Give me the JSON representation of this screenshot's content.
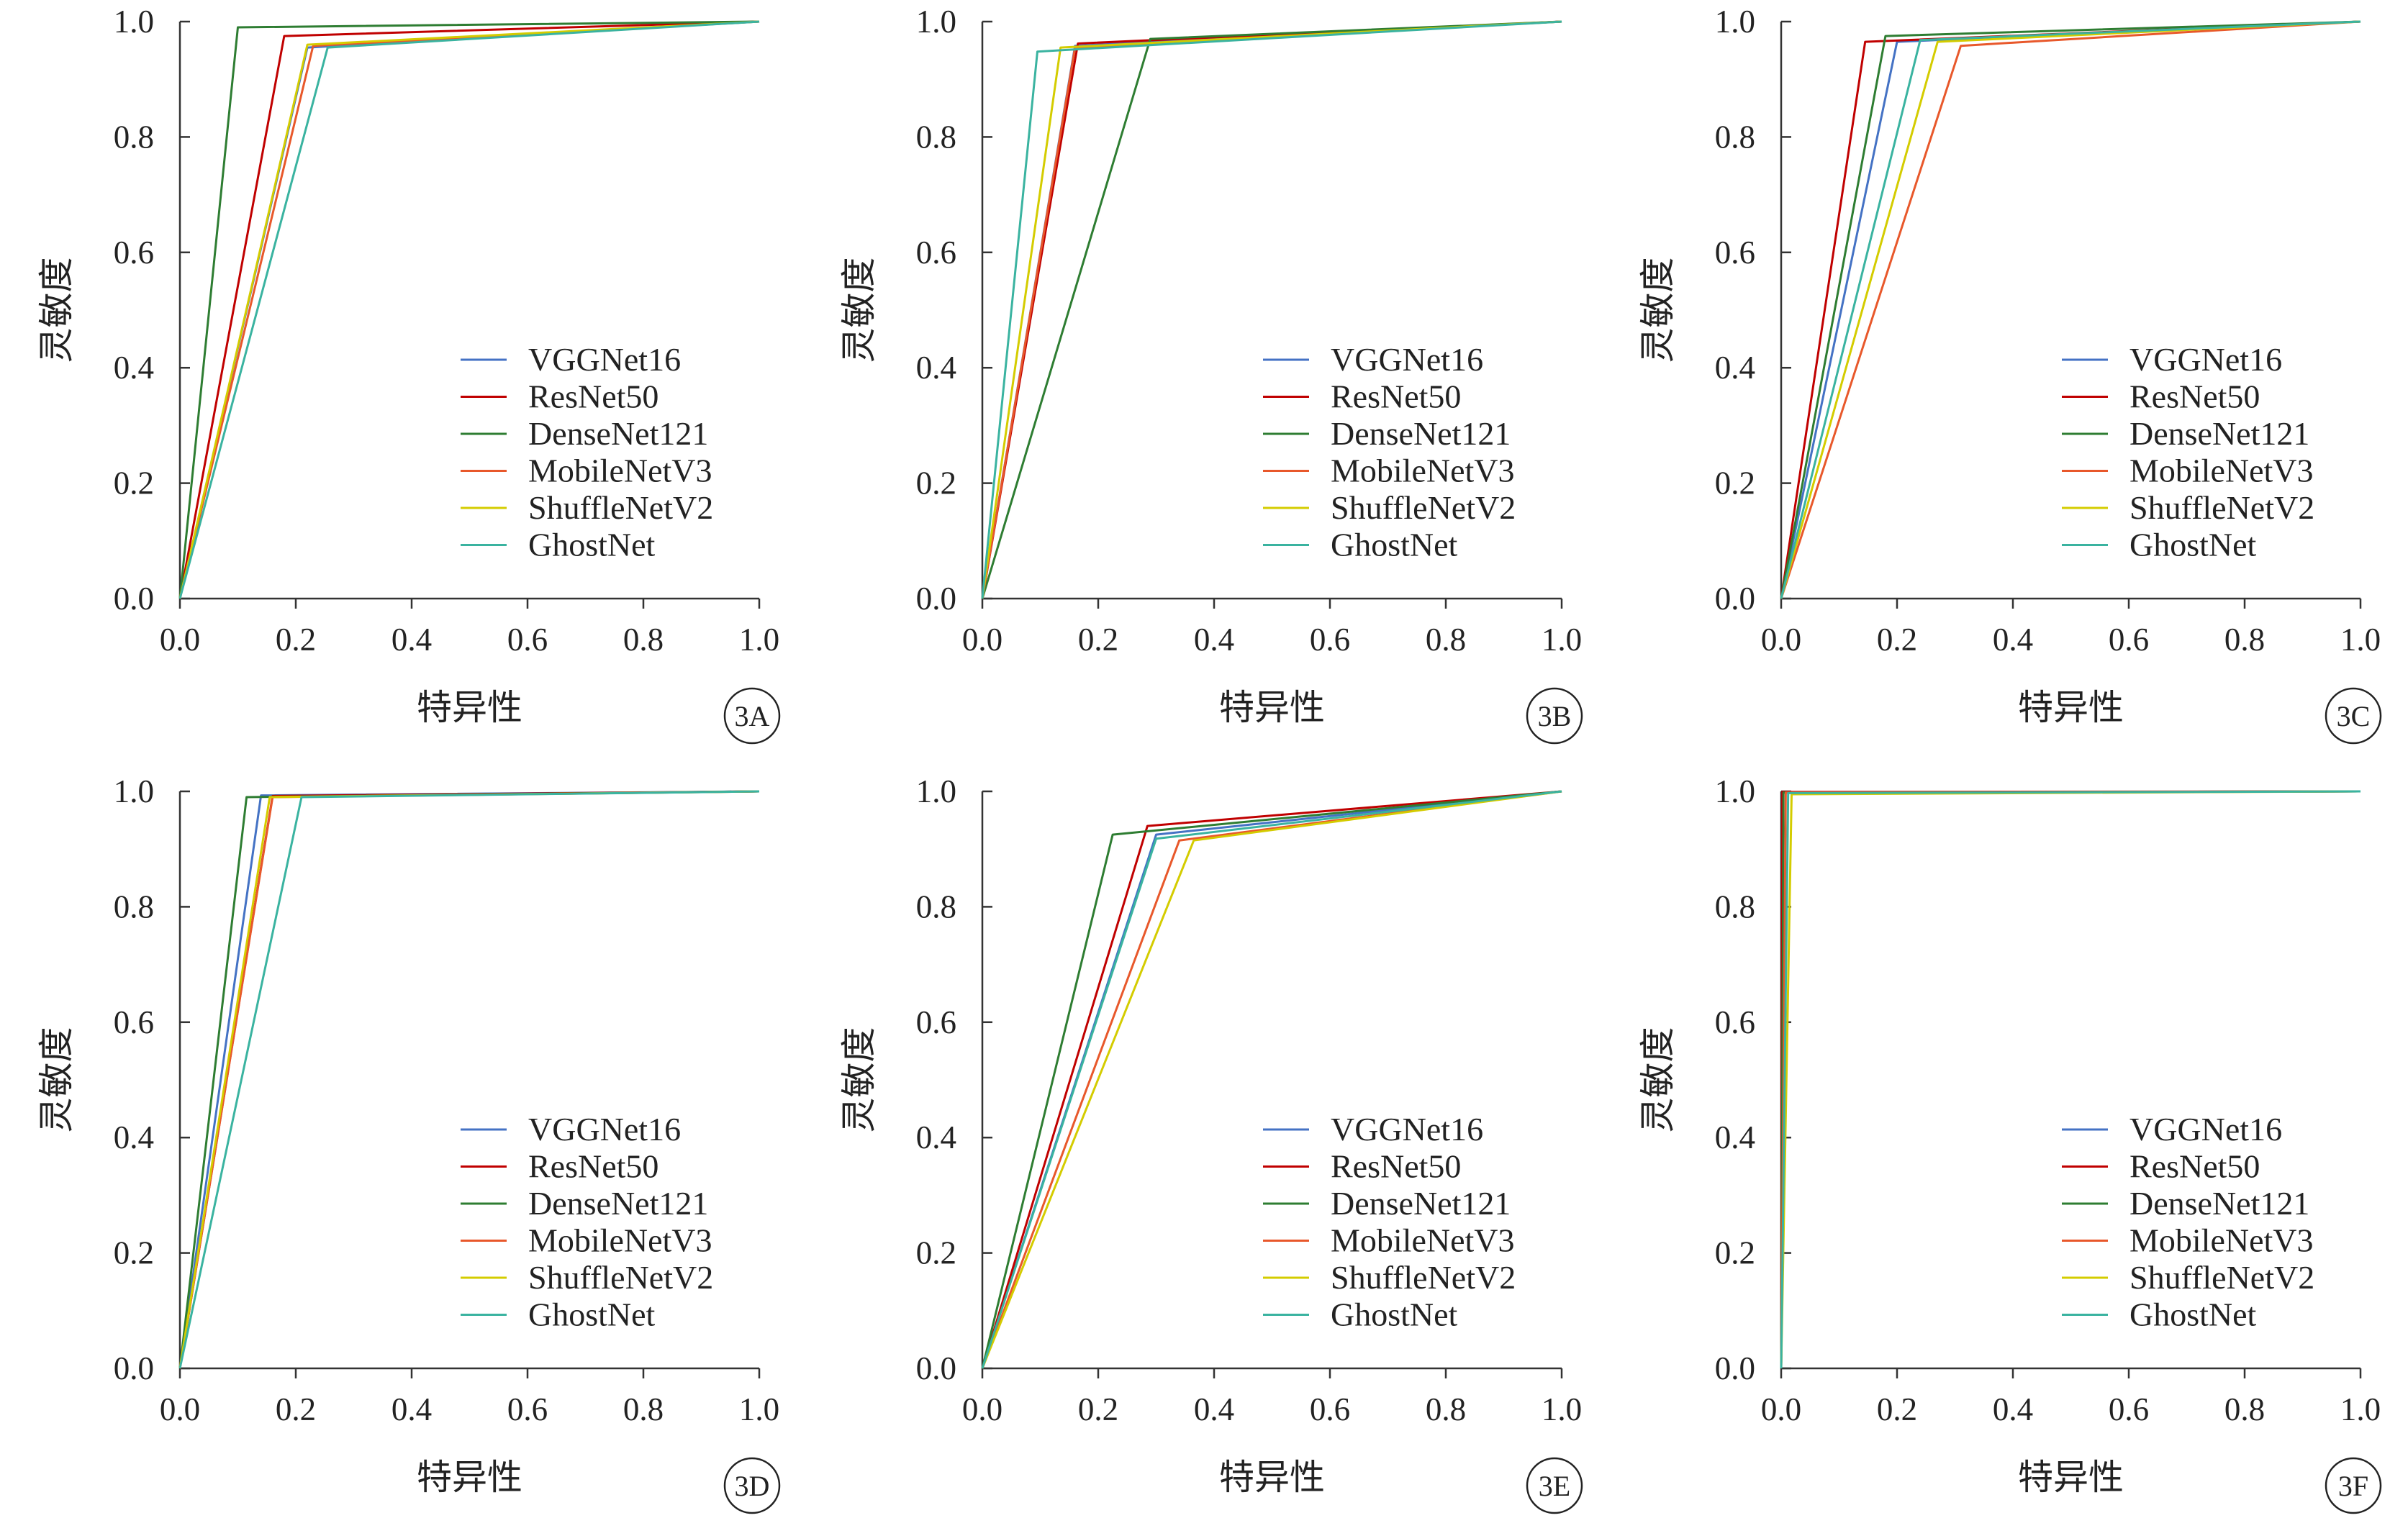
{
  "figure": {
    "xlabel": "特异性",
    "ylabel": "灵敏度"
  },
  "series_colors": {
    "VGGNet16": "#4472c4",
    "ResNet50": "#c00000",
    "DenseNet121": "#2e7d32",
    "MobileNetV3": "#e8582b",
    "ShuffleNetV2": "#d4cc00",
    "GhostNet": "#3ab3a0"
  },
  "chart_data": [
    {
      "panel": "3A",
      "type": "line",
      "xlabel": "特异性",
      "ylabel": "灵敏度",
      "xlim": [
        0,
        1
      ],
      "ylim": [
        0,
        1
      ],
      "xticks": [
        "0.0",
        "0.2",
        "0.4",
        "0.6",
        "0.8",
        "1.0"
      ],
      "yticks": [
        "0.0",
        "0.2",
        "0.4",
        "0.6",
        "0.8",
        "1.0"
      ],
      "legend": "lower-right",
      "series": [
        {
          "name": "VGGNet16",
          "x": [
            0,
            0.22,
            1
          ],
          "y": [
            0,
            0.955,
            1
          ]
        },
        {
          "name": "ResNet50",
          "x": [
            0,
            0.18,
            1
          ],
          "y": [
            0,
            0.975,
            1
          ]
        },
        {
          "name": "DenseNet121",
          "x": [
            0,
            0.1,
            1
          ],
          "y": [
            0,
            0.99,
            1
          ]
        },
        {
          "name": "MobileNetV3",
          "x": [
            0,
            0.23,
            1
          ],
          "y": [
            0,
            0.958,
            1
          ]
        },
        {
          "name": "ShuffleNetV2",
          "x": [
            0,
            0.22,
            1
          ],
          "y": [
            0,
            0.96,
            1
          ]
        },
        {
          "name": "GhostNet",
          "x": [
            0,
            0.255,
            1
          ],
          "y": [
            0,
            0.955,
            1
          ]
        }
      ]
    },
    {
      "panel": "3B",
      "type": "line",
      "xlabel": "特异性",
      "ylabel": "灵敏度",
      "xlim": [
        0,
        1
      ],
      "ylim": [
        0,
        1
      ],
      "xticks": [
        "0.0",
        "0.2",
        "0.4",
        "0.6",
        "0.8",
        "1.0"
      ],
      "yticks": [
        "0.0",
        "0.2",
        "0.4",
        "0.6",
        "0.8",
        "1.0"
      ],
      "legend": "lower-right",
      "series": [
        {
          "name": "VGGNet16",
          "x": [
            0,
            0.16,
            1
          ],
          "y": [
            0,
            0.958,
            1
          ]
        },
        {
          "name": "ResNet50",
          "x": [
            0,
            0.165,
            1
          ],
          "y": [
            0,
            0.962,
            1
          ]
        },
        {
          "name": "DenseNet121",
          "x": [
            0,
            0.29,
            1
          ],
          "y": [
            0,
            0.97,
            1
          ]
        },
        {
          "name": "MobileNetV3",
          "x": [
            0,
            0.16,
            1
          ],
          "y": [
            0,
            0.955,
            1
          ]
        },
        {
          "name": "ShuffleNetV2",
          "x": [
            0,
            0.135,
            1
          ],
          "y": [
            0,
            0.955,
            1
          ]
        },
        {
          "name": "GhostNet",
          "x": [
            0,
            0.095,
            1
          ],
          "y": [
            0,
            0.948,
            1
          ]
        }
      ]
    },
    {
      "panel": "3C",
      "type": "line",
      "xlabel": "特异性",
      "ylabel": "灵敏度",
      "xlim": [
        0,
        1
      ],
      "ylim": [
        0,
        1
      ],
      "xticks": [
        "0.0",
        "0.2",
        "0.4",
        "0.6",
        "0.8",
        "1.0"
      ],
      "yticks": [
        "0.0",
        "0.2",
        "0.4",
        "0.6",
        "0.8",
        "1.0"
      ],
      "legend": "lower-right",
      "series": [
        {
          "name": "VGGNet16",
          "x": [
            0,
            0.2,
            1
          ],
          "y": [
            0,
            0.965,
            1
          ]
        },
        {
          "name": "ResNet50",
          "x": [
            0,
            0.145,
            1
          ],
          "y": [
            0,
            0.965,
            1
          ]
        },
        {
          "name": "DenseNet121",
          "x": [
            0,
            0.18,
            1
          ],
          "y": [
            0,
            0.975,
            1
          ]
        },
        {
          "name": "MobileNetV3",
          "x": [
            0,
            0.31,
            1
          ],
          "y": [
            0,
            0.958,
            1
          ]
        },
        {
          "name": "ShuffleNetV2",
          "x": [
            0,
            0.27,
            1
          ],
          "y": [
            0,
            0.965,
            1
          ]
        },
        {
          "name": "GhostNet",
          "x": [
            0,
            0.24,
            1
          ],
          "y": [
            0,
            0.968,
            1
          ]
        }
      ]
    },
    {
      "panel": "3D",
      "type": "line",
      "xlabel": "特异性",
      "ylabel": "灵敏度",
      "xlim": [
        0,
        1
      ],
      "ylim": [
        0,
        1
      ],
      "xticks": [
        "0.0",
        "0.2",
        "0.4",
        "0.6",
        "0.8",
        "1.0"
      ],
      "yticks": [
        "0.0",
        "0.2",
        "0.4",
        "0.6",
        "0.8",
        "1.0"
      ],
      "legend": "lower-right",
      "series": [
        {
          "name": "VGGNet16",
          "x": [
            0,
            0.14,
            1
          ],
          "y": [
            0,
            0.993,
            1
          ]
        },
        {
          "name": "ResNet50",
          "x": [
            0,
            0.16,
            1
          ],
          "y": [
            0,
            0.992,
            1
          ]
        },
        {
          "name": "DenseNet121",
          "x": [
            0,
            0.115,
            1
          ],
          "y": [
            0,
            0.99,
            1
          ]
        },
        {
          "name": "MobileNetV3",
          "x": [
            0,
            0.16,
            1
          ],
          "y": [
            0,
            0.99,
            1
          ]
        },
        {
          "name": "ShuffleNetV2",
          "x": [
            0,
            0.155,
            1
          ],
          "y": [
            0,
            0.99,
            1
          ]
        },
        {
          "name": "GhostNet",
          "x": [
            0,
            0.21,
            1
          ],
          "y": [
            0,
            0.99,
            1
          ]
        }
      ]
    },
    {
      "panel": "3E",
      "type": "line",
      "xlabel": "特异性",
      "ylabel": "灵敏度",
      "xlim": [
        0,
        1
      ],
      "ylim": [
        0,
        1
      ],
      "xticks": [
        "0.0",
        "0.2",
        "0.4",
        "0.6",
        "0.8",
        "1.0"
      ],
      "yticks": [
        "0.0",
        "0.2",
        "0.4",
        "0.6",
        "0.8",
        "1.0"
      ],
      "legend": "lower-right",
      "series": [
        {
          "name": "VGGNet16",
          "x": [
            0,
            0.3,
            1
          ],
          "y": [
            0,
            0.925,
            1
          ]
        },
        {
          "name": "ResNet50",
          "x": [
            0,
            0.285,
            1
          ],
          "y": [
            0,
            0.94,
            1
          ]
        },
        {
          "name": "DenseNet121",
          "x": [
            0,
            0.225,
            1
          ],
          "y": [
            0,
            0.925,
            1
          ]
        },
        {
          "name": "MobileNetV3",
          "x": [
            0,
            0.34,
            1
          ],
          "y": [
            0,
            0.915,
            1
          ]
        },
        {
          "name": "ShuffleNetV2",
          "x": [
            0,
            0.365,
            1
          ],
          "y": [
            0,
            0.915,
            1
          ]
        },
        {
          "name": "GhostNet",
          "x": [
            0,
            0.3,
            1
          ],
          "y": [
            0,
            0.918,
            1
          ]
        }
      ]
    },
    {
      "panel": "3F",
      "type": "line",
      "xlabel": "特异性",
      "ylabel": "灵敏度",
      "xlim": [
        0,
        1
      ],
      "ylim": [
        0,
        1
      ],
      "xticks": [
        "0.0",
        "0.2",
        "0.4",
        "0.6",
        "0.8",
        "1.0"
      ],
      "yticks": [
        "0.0",
        "0.2",
        "0.4",
        "0.6",
        "0.8",
        "1.0"
      ],
      "legend": "lower-right",
      "series": [
        {
          "name": "VGGNet16",
          "x": [
            0,
            0.003,
            1
          ],
          "y": [
            0,
            0.998,
            1
          ]
        },
        {
          "name": "ResNet50",
          "x": [
            0,
            0.002,
            1
          ],
          "y": [
            0,
            0.999,
            1
          ]
        },
        {
          "name": "DenseNet121",
          "x": [
            0,
            0.004,
            1
          ],
          "y": [
            0,
            0.998,
            1
          ]
        },
        {
          "name": "MobileNetV3",
          "x": [
            0,
            0.008,
            1
          ],
          "y": [
            0,
            0.998,
            1
          ]
        },
        {
          "name": "ShuffleNetV2",
          "x": [
            0,
            0.018,
            1
          ],
          "y": [
            0,
            0.995,
            1
          ]
        },
        {
          "name": "GhostNet",
          "x": [
            0,
            0.012,
            1
          ],
          "y": [
            0,
            0.997,
            1
          ]
        }
      ]
    }
  ]
}
